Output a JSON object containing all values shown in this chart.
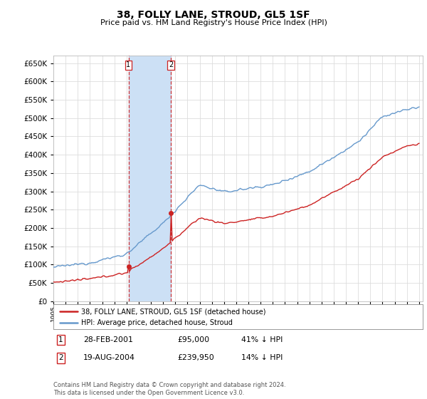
{
  "title": "38, FOLLY LANE, STROUD, GL5 1SF",
  "subtitle": "Price paid vs. HM Land Registry's House Price Index (HPI)",
  "sale1_date": 2001.16,
  "sale1_price": 95000,
  "sale2_date": 2004.63,
  "sale2_price": 239950,
  "legend_entry1": "38, FOLLY LANE, STROUD, GL5 1SF (detached house)",
  "legend_entry2": "HPI: Average price, detached house, Stroud",
  "footnote": "Contains HM Land Registry data © Crown copyright and database right 2024.\nThis data is licensed under the Open Government Licence v3.0.",
  "hpi_color": "#6699cc",
  "price_color": "#cc2222",
  "shade_color": "#cce0f5",
  "grid_color": "#dddddd",
  "bg_color": "#ffffff",
  "date1_str": "28-FEB-2001",
  "price1_str": "£95,000",
  "pct1_str": "41% ↓ HPI",
  "date2_str": "19-AUG-2004",
  "price2_str": "£239,950",
  "pct2_str": "14% ↓ HPI"
}
